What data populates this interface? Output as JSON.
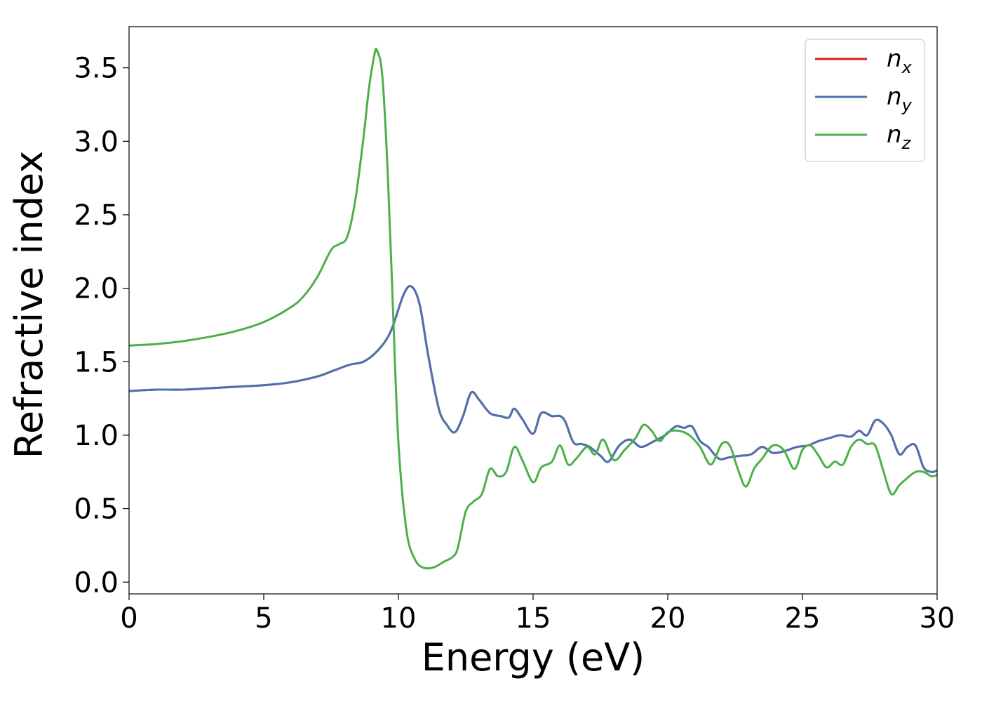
{
  "chart_data": {
    "type": "line",
    "xlabel": "Energy (eV)",
    "ylabel": "Refractive index",
    "xlim": [
      0,
      30
    ],
    "ylim": [
      -0.08,
      3.78
    ],
    "xticks": [
      0,
      5,
      10,
      15,
      20,
      25,
      30
    ],
    "xtick_labels": [
      "0",
      "5",
      "10",
      "15",
      "20",
      "25",
      "30"
    ],
    "yticks": [
      0.0,
      0.5,
      1.0,
      1.5,
      2.0,
      2.5,
      3.0,
      3.5
    ],
    "ytick_labels": [
      "0.0",
      "0.5",
      "1.0",
      "1.5",
      "2.0",
      "2.5",
      "3.0",
      "3.5"
    ],
    "grid": false,
    "legend_position": "top-right",
    "series": [
      {
        "name": "n_x",
        "legend_main": "n",
        "legend_sub": "x",
        "color": "#e41a1c",
        "x": [
          0,
          1,
          2,
          3,
          4,
          5,
          6,
          7,
          7.6,
          8.2,
          8.7,
          9.2,
          9.7,
          10.2,
          10.5,
          10.8,
          11.1,
          11.5,
          11.8,
          12.1,
          12.4,
          12.7,
          13.0,
          13.4,
          13.8,
          14.1,
          14.3,
          14.6,
          15.0,
          15.3,
          15.7,
          16.0,
          16.2,
          16.5,
          16.8,
          17.1,
          17.5,
          17.8,
          18.2,
          18.6,
          19.0,
          19.5,
          19.9,
          20.3,
          20.6,
          20.9,
          21.2,
          21.5,
          21.9,
          22.3,
          22.7,
          23.1,
          23.5,
          23.9,
          24.3,
          24.8,
          25.2,
          25.6,
          26.0,
          26.4,
          26.8,
          27.1,
          27.4,
          27.7,
          28.0,
          28.3,
          28.6,
          28.9,
          29.2,
          29.5,
          29.8,
          30.0
        ],
        "y": [
          1.3,
          1.31,
          1.31,
          1.32,
          1.33,
          1.34,
          1.36,
          1.4,
          1.44,
          1.48,
          1.5,
          1.57,
          1.7,
          1.96,
          2.01,
          1.88,
          1.55,
          1.18,
          1.07,
          1.02,
          1.13,
          1.29,
          1.24,
          1.15,
          1.13,
          1.12,
          1.18,
          1.11,
          1.01,
          1.15,
          1.13,
          1.13,
          1.09,
          0.95,
          0.94,
          0.92,
          0.86,
          0.82,
          0.93,
          0.97,
          0.92,
          0.96,
          1.0,
          1.06,
          1.05,
          1.06,
          0.96,
          0.92,
          0.84,
          0.85,
          0.86,
          0.87,
          0.92,
          0.88,
          0.89,
          0.92,
          0.93,
          0.96,
          0.98,
          1.0,
          0.99,
          1.03,
          1.0,
          1.1,
          1.08,
          1.0,
          0.87,
          0.92,
          0.93,
          0.78,
          0.75,
          0.76
        ]
      },
      {
        "name": "n_y",
        "legend_main": "n",
        "legend_sub": "y",
        "color": "#4a72b0",
        "x": [
          0,
          1,
          2,
          3,
          4,
          5,
          6,
          7,
          7.6,
          8.2,
          8.7,
          9.2,
          9.7,
          10.2,
          10.5,
          10.8,
          11.1,
          11.5,
          11.8,
          12.1,
          12.4,
          12.7,
          13.0,
          13.4,
          13.8,
          14.1,
          14.3,
          14.6,
          15.0,
          15.3,
          15.7,
          16.0,
          16.2,
          16.5,
          16.8,
          17.1,
          17.5,
          17.8,
          18.2,
          18.6,
          19.0,
          19.5,
          19.9,
          20.3,
          20.6,
          20.9,
          21.2,
          21.5,
          21.9,
          22.3,
          22.7,
          23.1,
          23.5,
          23.9,
          24.3,
          24.8,
          25.2,
          25.6,
          26.0,
          26.4,
          26.8,
          27.1,
          27.4,
          27.7,
          28.0,
          28.3,
          28.6,
          28.9,
          29.2,
          29.5,
          29.8,
          30.0
        ],
        "y": [
          1.3,
          1.31,
          1.31,
          1.32,
          1.33,
          1.34,
          1.36,
          1.4,
          1.44,
          1.48,
          1.5,
          1.57,
          1.7,
          1.96,
          2.01,
          1.88,
          1.55,
          1.18,
          1.07,
          1.02,
          1.13,
          1.29,
          1.24,
          1.15,
          1.13,
          1.12,
          1.18,
          1.11,
          1.01,
          1.15,
          1.13,
          1.13,
          1.09,
          0.95,
          0.94,
          0.92,
          0.86,
          0.82,
          0.93,
          0.97,
          0.92,
          0.96,
          1.0,
          1.06,
          1.05,
          1.06,
          0.96,
          0.92,
          0.84,
          0.85,
          0.86,
          0.87,
          0.92,
          0.88,
          0.89,
          0.92,
          0.93,
          0.96,
          0.98,
          1.0,
          0.99,
          1.03,
          1.0,
          1.1,
          1.08,
          1.0,
          0.87,
          0.92,
          0.93,
          0.78,
          0.75,
          0.76
        ]
      },
      {
        "name": "n_z",
        "legend_main": "n",
        "legend_sub": "z",
        "color": "#4daf4a",
        "x": [
          0,
          1,
          2,
          3,
          4,
          5,
          6,
          6.5,
          7.0,
          7.5,
          7.8,
          8.1,
          8.4,
          8.7,
          8.9,
          9.1,
          9.2,
          9.4,
          9.6,
          9.8,
          10.0,
          10.3,
          10.6,
          10.9,
          11.3,
          11.7,
          12.0,
          12.2,
          12.5,
          12.8,
          13.1,
          13.4,
          13.7,
          14.0,
          14.3,
          14.6,
          15.0,
          15.3,
          15.7,
          16.0,
          16.3,
          16.6,
          17.0,
          17.3,
          17.6,
          18.0,
          18.4,
          18.8,
          19.1,
          19.4,
          19.7,
          20.0,
          20.4,
          20.8,
          21.2,
          21.6,
          22.0,
          22.3,
          22.6,
          22.9,
          23.2,
          23.5,
          23.9,
          24.3,
          24.7,
          25.0,
          25.3,
          25.6,
          25.9,
          26.2,
          26.5,
          26.8,
          27.1,
          27.4,
          27.7,
          28.0,
          28.3,
          28.6,
          28.9,
          29.2,
          29.5,
          29.8,
          30.0
        ],
        "y": [
          1.61,
          1.62,
          1.64,
          1.67,
          1.71,
          1.77,
          1.87,
          1.95,
          2.08,
          2.26,
          2.3,
          2.35,
          2.6,
          3.02,
          3.35,
          3.58,
          3.62,
          3.45,
          2.8,
          1.85,
          0.95,
          0.35,
          0.16,
          0.1,
          0.1,
          0.14,
          0.17,
          0.23,
          0.48,
          0.55,
          0.6,
          0.77,
          0.72,
          0.75,
          0.92,
          0.83,
          0.68,
          0.78,
          0.82,
          0.93,
          0.8,
          0.84,
          0.92,
          0.87,
          0.97,
          0.83,
          0.9,
          0.98,
          1.07,
          1.03,
          0.96,
          1.02,
          1.03,
          1.0,
          0.92,
          0.8,
          0.94,
          0.93,
          0.77,
          0.65,
          0.77,
          0.84,
          0.93,
          0.9,
          0.77,
          0.9,
          0.93,
          0.86,
          0.78,
          0.82,
          0.8,
          0.92,
          0.97,
          0.94,
          0.93,
          0.76,
          0.6,
          0.66,
          0.71,
          0.75,
          0.75,
          0.72,
          0.73
        ]
      }
    ]
  }
}
